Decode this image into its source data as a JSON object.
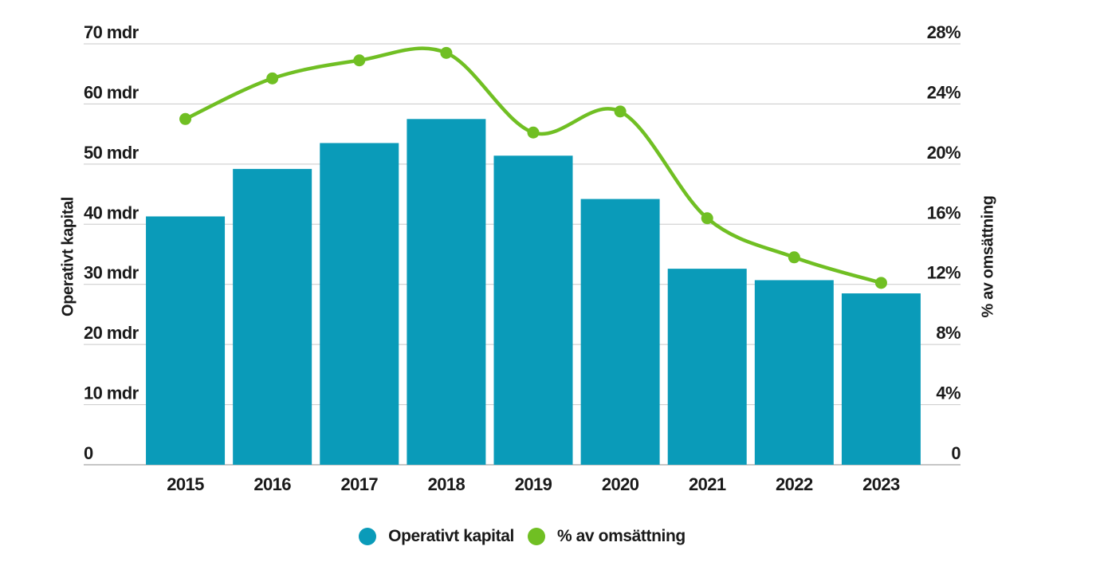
{
  "chart": {
    "left_axis_title": "Operativt kapital",
    "right_axis_title": "% av omsättning",
    "colors": {
      "bar": "#0a9bb9",
      "line": "#70bf23",
      "grid": "#c9c9c9",
      "baseline": "#b3b3b3",
      "text": "#1a1a1a",
      "background": "#ffffff"
    }
  },
  "chart_data": {
    "type": "bar",
    "subtype": "bar+line dual axis",
    "categories": [
      "2015",
      "2016",
      "2017",
      "2018",
      "2019",
      "2020",
      "2021",
      "2022",
      "2023"
    ],
    "series": [
      {
        "name": "Operativt kapital",
        "type": "bar",
        "axis": "left",
        "unit": "mdr",
        "color": "#0a9bb9",
        "values": [
          41.3,
          49.2,
          53.5,
          57.5,
          51.4,
          44.2,
          32.6,
          30.7,
          28.5
        ]
      },
      {
        "name": "% av omsättning",
        "type": "line",
        "axis": "right",
        "unit": "%",
        "color": "#70bf23",
        "values": [
          23.0,
          25.7,
          26.9,
          27.4,
          22.1,
          23.5,
          16.4,
          13.8,
          12.1
        ]
      }
    ],
    "left_axis": {
      "title": "Operativt kapital",
      "min": 0,
      "max": 70,
      "tick_values": [
        0,
        10,
        20,
        30,
        40,
        50,
        60,
        70
      ],
      "tick_labels": [
        "0",
        "10 mdr",
        "20 mdr",
        "30 mdr",
        "40 mdr",
        "50 mdr",
        "60 mdr",
        "70 mdr"
      ]
    },
    "right_axis": {
      "title": "% av omsättning",
      "min": 0,
      "max": 28,
      "tick_values": [
        0,
        4,
        8,
        12,
        16,
        20,
        24,
        28
      ],
      "tick_labels": [
        "0",
        "4%",
        "8%",
        "12%",
        "16%",
        "20%",
        "24%",
        "28%"
      ]
    },
    "grid": true,
    "legend_position": "bottom"
  }
}
